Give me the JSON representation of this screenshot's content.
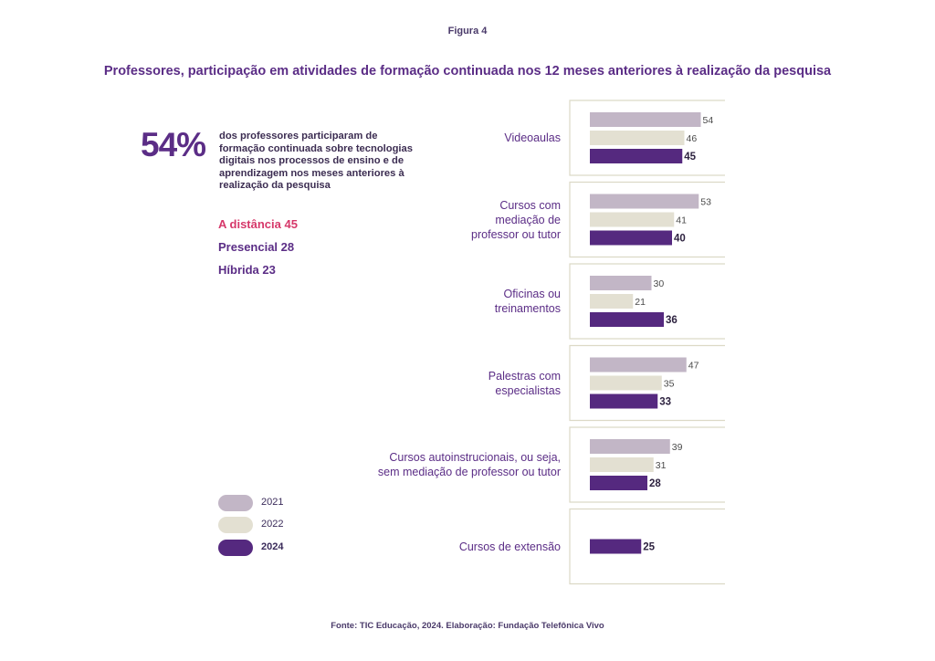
{
  "figure_label": "Figura 4",
  "title": "Professores, participação em atividades de formação continuada nos 12 meses anteriores à realização da pesquisa",
  "highlight": {
    "value": "54%",
    "description": "dos professores participaram de formação continuada sobre tecnologias digitais nos processos de ensino e de aprendizagem nos meses anteriores à realização da pesquisa"
  },
  "modalities": [
    {
      "label": "A distância 45",
      "color": "#d6386a"
    },
    {
      "label": "Presencial 28",
      "color": "#5b2d86"
    },
    {
      "label": "Híbrida 23",
      "color": "#5b2d86"
    }
  ],
  "colors": {
    "2021": "#c2b6c6",
    "2022": "#e3e0d2",
    "2024": "#55297f",
    "panel_border": "#dcd9c6"
  },
  "source": "Fonte: TIC Educação, 2024. Elaboração: Fundação Telefônica Vivo",
  "chart_data": {
    "type": "bar",
    "orientation": "horizontal",
    "title": "Professores, participação em atividades de formação continuada nos 12 meses anteriores à realização da pesquisa",
    "legend": [
      {
        "name": "2021",
        "color": "#c2b6c6"
      },
      {
        "name": "2022",
        "color": "#e3e0d2"
      },
      {
        "name": "2024",
        "color": "#55297f"
      }
    ],
    "legend_placement": "bottom-left",
    "grid": false,
    "categories": [
      {
        "label_lines": [
          "Videoaulas"
        ]
      },
      {
        "label_lines": [
          "Cursos com",
          "mediação de",
          "professor ou tutor"
        ]
      },
      {
        "label_lines": [
          "Oficinas ou",
          "treinamentos"
        ]
      },
      {
        "label_lines": [
          "Palestras com",
          "especialistas"
        ]
      },
      {
        "label_lines": [
          "Cursos autoinstrucionais, ou seja,",
          "sem mediação de professor ou tutor"
        ]
      },
      {
        "label_lines": [
          "Cursos de extensão"
        ]
      }
    ],
    "series": [
      {
        "name": "2021",
        "values": [
          54,
          53,
          30,
          47,
          39,
          null
        ]
      },
      {
        "name": "2022",
        "values": [
          46,
          41,
          21,
          35,
          31,
          null
        ]
      },
      {
        "name": "2024",
        "values": [
          45,
          40,
          36,
          33,
          28,
          25
        ]
      }
    ],
    "xlim": [
      0,
      100
    ],
    "unit": "%"
  }
}
